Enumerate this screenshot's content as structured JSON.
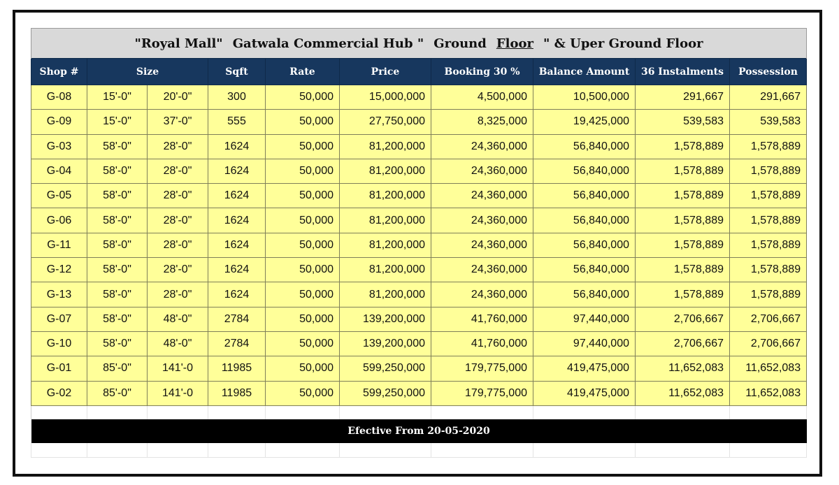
{
  "title": {
    "part1": "\"Royal Mall\"",
    "part2": "Gatwala Commercial Hub \"",
    "part3": "Ground",
    "part4": "Floor",
    "part5": "\" & Uper Ground Floor"
  },
  "headers": {
    "shop": "Shop #",
    "size": "Size",
    "sqft": "Sqft",
    "rate": "Rate",
    "price": "Price",
    "booking": "Booking 30 %",
    "balance": "Balance Amount",
    "instalments": "36 Instalments",
    "possession": "Possession"
  },
  "rows": [
    {
      "shop": "G-08",
      "w": "15'-0\"",
      "l": "20'-0\"",
      "sqft": "300",
      "rate": "50,000",
      "price": "15,000,000",
      "booking": "4,500,000",
      "balance": "10,500,000",
      "instalments": "291,667",
      "possession": "291,667"
    },
    {
      "shop": "G-09",
      "w": "15'-0\"",
      "l": "37'-0\"",
      "sqft": "555",
      "rate": "50,000",
      "price": "27,750,000",
      "booking": "8,325,000",
      "balance": "19,425,000",
      "instalments": "539,583",
      "possession": "539,583"
    },
    {
      "shop": "G-03",
      "w": "58'-0\"",
      "l": "28'-0\"",
      "sqft": "1624",
      "rate": "50,000",
      "price": "81,200,000",
      "booking": "24,360,000",
      "balance": "56,840,000",
      "instalments": "1,578,889",
      "possession": "1,578,889"
    },
    {
      "shop": "G-04",
      "w": "58'-0\"",
      "l": "28'-0\"",
      "sqft": "1624",
      "rate": "50,000",
      "price": "81,200,000",
      "booking": "24,360,000",
      "balance": "56,840,000",
      "instalments": "1,578,889",
      "possession": "1,578,889"
    },
    {
      "shop": "G-05",
      "w": "58'-0\"",
      "l": "28'-0\"",
      "sqft": "1624",
      "rate": "50,000",
      "price": "81,200,000",
      "booking": "24,360,000",
      "balance": "56,840,000",
      "instalments": "1,578,889",
      "possession": "1,578,889"
    },
    {
      "shop": "G-06",
      "w": "58'-0\"",
      "l": "28'-0\"",
      "sqft": "1624",
      "rate": "50,000",
      "price": "81,200,000",
      "booking": "24,360,000",
      "balance": "56,840,000",
      "instalments": "1,578,889",
      "possession": "1,578,889"
    },
    {
      "shop": "G-11",
      "w": "58'-0\"",
      "l": "28'-0\"",
      "sqft": "1624",
      "rate": "50,000",
      "price": "81,200,000",
      "booking": "24,360,000",
      "balance": "56,840,000",
      "instalments": "1,578,889",
      "possession": "1,578,889"
    },
    {
      "shop": "G-12",
      "w": "58'-0\"",
      "l": "28'-0\"",
      "sqft": "1624",
      "rate": "50,000",
      "price": "81,200,000",
      "booking": "24,360,000",
      "balance": "56,840,000",
      "instalments": "1,578,889",
      "possession": "1,578,889"
    },
    {
      "shop": "G-13",
      "w": "58'-0\"",
      "l": "28'-0\"",
      "sqft": "1624",
      "rate": "50,000",
      "price": "81,200,000",
      "booking": "24,360,000",
      "balance": "56,840,000",
      "instalments": "1,578,889",
      "possession": "1,578,889"
    },
    {
      "shop": "G-07",
      "w": "58'-0\"",
      "l": "48'-0\"",
      "sqft": "2784",
      "rate": "50,000",
      "price": "139,200,000",
      "booking": "41,760,000",
      "balance": "97,440,000",
      "instalments": "2,706,667",
      "possession": "2,706,667"
    },
    {
      "shop": "G-10",
      "w": "58'-0\"",
      "l": "48'-0\"",
      "sqft": "2784",
      "rate": "50,000",
      "price": "139,200,000",
      "booking": "41,760,000",
      "balance": "97,440,000",
      "instalments": "2,706,667",
      "possession": "2,706,667"
    },
    {
      "shop": "G-01",
      "w": "85'-0\"",
      "l": "141'-0",
      "sqft": "11985",
      "rate": "50,000",
      "price": "599,250,000",
      "booking": "179,775,000",
      "balance": "419,475,000",
      "instalments": "11,652,083",
      "possession": "11,652,083"
    },
    {
      "shop": "G-02",
      "w": "85'-0\"",
      "l": "141'-0",
      "sqft": "11985",
      "rate": "50,000",
      "price": "599,250,000",
      "booking": "179,775,000",
      "balance": "419,475,000",
      "instalments": "11,652,083",
      "possession": "11,652,083"
    }
  ],
  "effective": "Efective From 20-05-2020",
  "colors": {
    "header_bg": "#17375e",
    "row_bg": "#ffff99",
    "title_bg": "#d9d9d9",
    "footer_bg": "#000000"
  }
}
